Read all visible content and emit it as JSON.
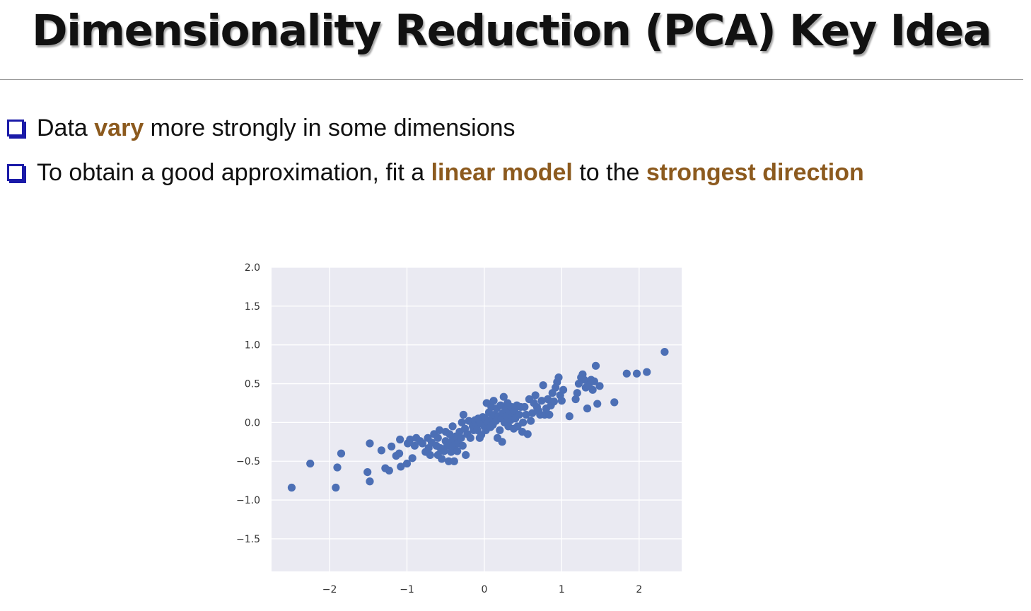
{
  "slide": {
    "title": "Dimensionality Reduction (PCA) Key Idea",
    "bullets": [
      {
        "parts": [
          {
            "text": "Data ",
            "highlight": false
          },
          {
            "text": "vary",
            "highlight": true
          },
          {
            "text": " more strongly in some dimensions",
            "highlight": false
          }
        ]
      },
      {
        "parts": [
          {
            "text": "To obtain a good approximation, fit a ",
            "highlight": false
          },
          {
            "text": "linear model",
            "highlight": true
          },
          {
            "text": " to the ",
            "highlight": false
          },
          {
            "text": "strongest direction",
            "highlight": true
          }
        ]
      }
    ]
  },
  "colors": {
    "highlight": "#8c5a1e",
    "bullet_box": "#1a1aa8",
    "point": "#4c6fb5",
    "plot_background": "#eaeaf2",
    "grid": "#ffffff"
  },
  "chart_data": {
    "type": "scatter",
    "title": "",
    "xlabel": "",
    "ylabel": "",
    "xlim": [
      -2.75,
      2.55
    ],
    "ylim": [
      -1.92,
      2.0
    ],
    "xticks": [
      {
        "value": -2,
        "label": "−2"
      },
      {
        "value": -1,
        "label": "−1"
      },
      {
        "value": 0,
        "label": "0"
      },
      {
        "value": 1,
        "label": "1"
      },
      {
        "value": 2,
        "label": "2"
      }
    ],
    "yticks": [
      {
        "value": 2.0,
        "label": "2.0"
      },
      {
        "value": 1.5,
        "label": "1.5"
      },
      {
        "value": 1.0,
        "label": "1.0"
      },
      {
        "value": 0.5,
        "label": "0.5"
      },
      {
        "value": 0.0,
        "label": "0.0"
      },
      {
        "value": -0.5,
        "label": "−0.5"
      },
      {
        "value": -1.0,
        "label": "−1.0"
      },
      {
        "value": -1.5,
        "label": "−1.5"
      }
    ],
    "grid": true,
    "points": [
      {
        "x": -2.49,
        "y": -0.84
      },
      {
        "x": -2.25,
        "y": -0.53
      },
      {
        "x": -1.92,
        "y": -0.84
      },
      {
        "x": -1.9,
        "y": -0.58
      },
      {
        "x": -1.85,
        "y": -0.4
      },
      {
        "x": -1.51,
        "y": -0.64
      },
      {
        "x": -1.48,
        "y": -0.76
      },
      {
        "x": -1.48,
        "y": -0.27
      },
      {
        "x": -1.33,
        "y": -0.36
      },
      {
        "x": -1.28,
        "y": -0.59
      },
      {
        "x": -1.23,
        "y": -0.62
      },
      {
        "x": -1.2,
        "y": -0.31
      },
      {
        "x": -1.14,
        "y": -0.43
      },
      {
        "x": -1.1,
        "y": -0.4
      },
      {
        "x": -1.09,
        "y": -0.22
      },
      {
        "x": -1.08,
        "y": -0.57
      },
      {
        "x": -1.0,
        "y": -0.53
      },
      {
        "x": -0.99,
        "y": -0.27
      },
      {
        "x": -0.96,
        "y": -0.22
      },
      {
        "x": -0.93,
        "y": -0.46
      },
      {
        "x": -0.9,
        "y": -0.3
      },
      {
        "x": -0.88,
        "y": -0.2
      },
      {
        "x": -0.83,
        "y": -0.24
      },
      {
        "x": -0.8,
        "y": -0.27
      },
      {
        "x": -0.76,
        "y": -0.38
      },
      {
        "x": -0.73,
        "y": -0.2
      },
      {
        "x": -0.72,
        "y": -0.33
      },
      {
        "x": -0.7,
        "y": -0.42
      },
      {
        "x": -0.68,
        "y": -0.26
      },
      {
        "x": -0.65,
        "y": -0.15
      },
      {
        "x": -0.62,
        "y": -0.3
      },
      {
        "x": -0.6,
        "y": -0.42
      },
      {
        "x": -0.6,
        "y": -0.2
      },
      {
        "x": -0.58,
        "y": -0.1
      },
      {
        "x": -0.57,
        "y": -0.33
      },
      {
        "x": -0.55,
        "y": -0.47
      },
      {
        "x": -0.52,
        "y": -0.37
      },
      {
        "x": -0.5,
        "y": -0.24
      },
      {
        "x": -0.5,
        "y": -0.12
      },
      {
        "x": -0.48,
        "y": -0.3
      },
      {
        "x": -0.46,
        "y": -0.5
      },
      {
        "x": -0.45,
        "y": -0.15
      },
      {
        "x": -0.43,
        "y": -0.38
      },
      {
        "x": -0.42,
        "y": -0.24
      },
      {
        "x": -0.41,
        "y": -0.05
      },
      {
        "x": -0.4,
        "y": -0.3
      },
      {
        "x": -0.39,
        "y": -0.5
      },
      {
        "x": -0.37,
        "y": -0.18
      },
      {
        "x": -0.35,
        "y": -0.37
      },
      {
        "x": -0.34,
        "y": -0.27
      },
      {
        "x": -0.32,
        "y": -0.12
      },
      {
        "x": -0.3,
        "y": -0.2
      },
      {
        "x": -0.29,
        "y": 0.0
      },
      {
        "x": -0.28,
        "y": -0.3
      },
      {
        "x": -0.27,
        "y": 0.1
      },
      {
        "x": -0.25,
        "y": -0.08
      },
      {
        "x": -0.24,
        "y": -0.42
      },
      {
        "x": -0.22,
        "y": -0.15
      },
      {
        "x": -0.2,
        "y": 0.02
      },
      {
        "x": -0.18,
        "y": -0.2
      },
      {
        "x": -0.15,
        "y": -0.05
      },
      {
        "x": -0.14,
        "y": -0.1
      },
      {
        "x": -0.12,
        "y": 0.03
      },
      {
        "x": -0.1,
        "y": -0.05
      },
      {
        "x": -0.09,
        "y": -0.1
      },
      {
        "x": -0.08,
        "y": 0.05
      },
      {
        "x": -0.06,
        "y": -0.2
      },
      {
        "x": -0.05,
        "y": 0.0
      },
      {
        "x": -0.04,
        "y": -0.16
      },
      {
        "x": -0.02,
        "y": 0.07
      },
      {
        "x": 0.0,
        "y": -0.05
      },
      {
        "x": 0.01,
        "y": 0.05
      },
      {
        "x": 0.02,
        "y": -0.1
      },
      {
        "x": 0.03,
        "y": 0.25
      },
      {
        "x": 0.05,
        "y": 0.0
      },
      {
        "x": 0.06,
        "y": 0.13
      },
      {
        "x": 0.08,
        "y": -0.06
      },
      {
        "x": 0.09,
        "y": 0.2
      },
      {
        "x": 0.1,
        "y": 0.05
      },
      {
        "x": 0.11,
        "y": -0.03
      },
      {
        "x": 0.12,
        "y": 0.28
      },
      {
        "x": 0.13,
        "y": 0.1
      },
      {
        "x": 0.15,
        "y": 0.02
      },
      {
        "x": 0.16,
        "y": 0.18
      },
      {
        "x": 0.17,
        "y": -0.2
      },
      {
        "x": 0.18,
        "y": 0.08
      },
      {
        "x": 0.2,
        "y": -0.1
      },
      {
        "x": 0.21,
        "y": 0.22
      },
      {
        "x": 0.22,
        "y": 0.05
      },
      {
        "x": 0.23,
        "y": -0.25
      },
      {
        "x": 0.24,
        "y": 0.12
      },
      {
        "x": 0.25,
        "y": 0.33
      },
      {
        "x": 0.26,
        "y": 0.0
      },
      {
        "x": 0.28,
        "y": 0.18
      },
      {
        "x": 0.29,
        "y": 0.08
      },
      {
        "x": 0.3,
        "y": 0.25
      },
      {
        "x": 0.31,
        "y": -0.05
      },
      {
        "x": 0.33,
        "y": 0.14
      },
      {
        "x": 0.34,
        "y": 0.03
      },
      {
        "x": 0.35,
        "y": 0.2
      },
      {
        "x": 0.36,
        "y": 0.08
      },
      {
        "x": 0.38,
        "y": -0.08
      },
      {
        "x": 0.39,
        "y": 0.15
      },
      {
        "x": 0.4,
        "y": 0.05
      },
      {
        "x": 0.42,
        "y": 0.22
      },
      {
        "x": 0.43,
        "y": -0.05
      },
      {
        "x": 0.45,
        "y": 0.1
      },
      {
        "x": 0.47,
        "y": 0.2
      },
      {
        "x": 0.49,
        "y": -0.12
      },
      {
        "x": 0.5,
        "y": 0.0
      },
      {
        "x": 0.52,
        "y": 0.2
      },
      {
        "x": 0.54,
        "y": 0.1
      },
      {
        "x": 0.56,
        "y": -0.15
      },
      {
        "x": 0.58,
        "y": 0.3
      },
      {
        "x": 0.6,
        "y": 0.02
      },
      {
        "x": 0.62,
        "y": 0.12
      },
      {
        "x": 0.64,
        "y": 0.25
      },
      {
        "x": 0.66,
        "y": 0.35
      },
      {
        "x": 0.68,
        "y": 0.2
      },
      {
        "x": 0.7,
        "y": 0.15
      },
      {
        "x": 0.72,
        "y": 0.1
      },
      {
        "x": 0.74,
        "y": 0.28
      },
      {
        "x": 0.76,
        "y": 0.48
      },
      {
        "x": 0.78,
        "y": 0.1
      },
      {
        "x": 0.8,
        "y": 0.18
      },
      {
        "x": 0.82,
        "y": 0.3
      },
      {
        "x": 0.84,
        "y": 0.1
      },
      {
        "x": 0.86,
        "y": 0.22
      },
      {
        "x": 0.88,
        "y": 0.38
      },
      {
        "x": 0.9,
        "y": 0.27
      },
      {
        "x": 0.92,
        "y": 0.45
      },
      {
        "x": 0.94,
        "y": 0.52
      },
      {
        "x": 0.96,
        "y": 0.58
      },
      {
        "x": 0.98,
        "y": 0.35
      },
      {
        "x": 1.0,
        "y": 0.28
      },
      {
        "x": 1.02,
        "y": 0.42
      },
      {
        "x": 1.1,
        "y": 0.08
      },
      {
        "x": 1.18,
        "y": 0.3
      },
      {
        "x": 1.2,
        "y": 0.38
      },
      {
        "x": 1.22,
        "y": 0.5
      },
      {
        "x": 1.25,
        "y": 0.58
      },
      {
        "x": 1.27,
        "y": 0.62
      },
      {
        "x": 1.29,
        "y": 0.55
      },
      {
        "x": 1.31,
        "y": 0.45
      },
      {
        "x": 1.33,
        "y": 0.18
      },
      {
        "x": 1.35,
        "y": 0.48
      },
      {
        "x": 1.38,
        "y": 0.55
      },
      {
        "x": 1.4,
        "y": 0.42
      },
      {
        "x": 1.42,
        "y": 0.53
      },
      {
        "x": 1.44,
        "y": 0.73
      },
      {
        "x": 1.46,
        "y": 0.24
      },
      {
        "x": 1.49,
        "y": 0.47
      },
      {
        "x": 1.68,
        "y": 0.26
      },
      {
        "x": 1.84,
        "y": 0.63
      },
      {
        "x": 1.97,
        "y": 0.63
      },
      {
        "x": 2.1,
        "y": 0.65
      },
      {
        "x": 2.33,
        "y": 0.91
      }
    ]
  }
}
